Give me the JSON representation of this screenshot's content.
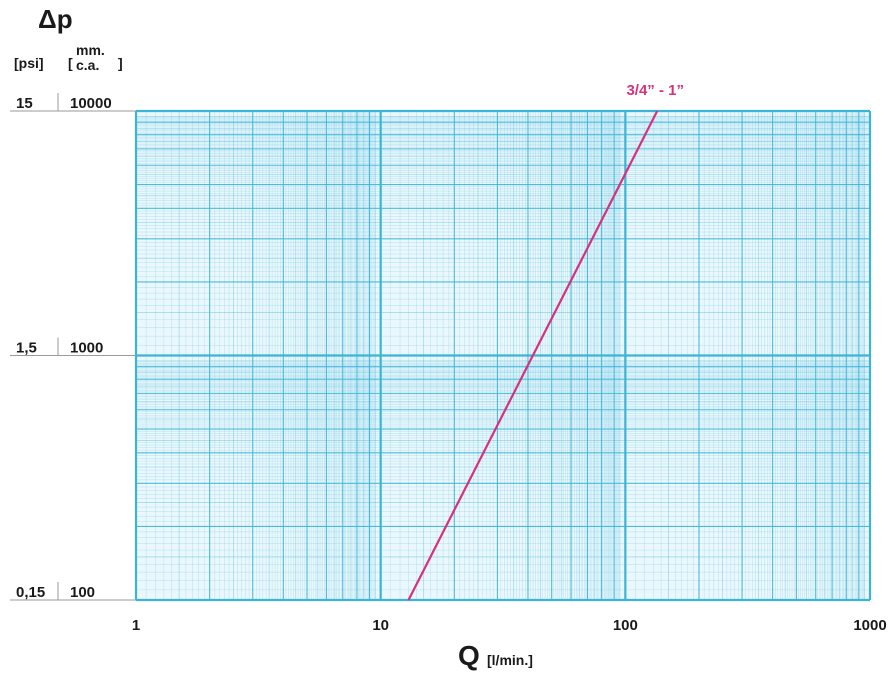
{
  "chart_data": {
    "type": "line",
    "x_scale": "log",
    "y_scale": "log",
    "xlim": [
      1,
      1000
    ],
    "ylim": [
      100,
      10000
    ],
    "grid": true,
    "ylabel": "Δp",
    "y_units": [
      "[psi]",
      "[mm. c.a.]"
    ],
    "y_units_mm": [
      "mm.",
      "c.a."
    ],
    "xlabel": "Q",
    "x_unit": "[l/min.]",
    "x_ticks": [
      {
        "value": 1,
        "label": "1"
      },
      {
        "value": 10,
        "label": "10"
      },
      {
        "value": 100,
        "label": "100"
      },
      {
        "value": 1000,
        "label": "1000"
      }
    ],
    "y_ticks": [
      {
        "value": 10000,
        "psi": "15",
        "mm": "10000"
      },
      {
        "value": 1000,
        "psi": "1,5",
        "mm": "1000"
      },
      {
        "value": 100,
        "psi": "0,15",
        "mm": "100"
      }
    ],
    "series": [
      {
        "name": "3/4” - 1”",
        "color": "#d6317d",
        "x": [
          13,
          135
        ],
        "y": [
          100,
          10000
        ]
      }
    ]
  },
  "colors": {
    "grid_line": "#3cb4d8",
    "grid_bg": "#eaf7fc",
    "text": "#1a1a1a",
    "series": "#d6317d"
  }
}
